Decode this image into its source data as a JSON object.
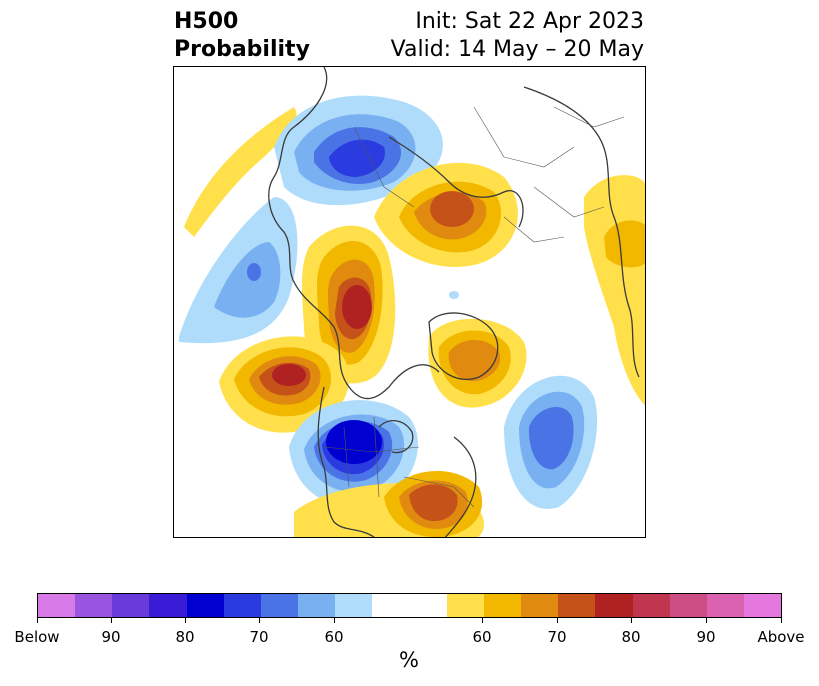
{
  "title": {
    "left_line1": "H500",
    "left_line2": "Probability",
    "right_line1": "Init: Sat 22 Apr 2023",
    "right_line2": "Valid: 14 May – 20 May"
  },
  "colorbar": {
    "unit_label": "%",
    "tick_labels": [
      "Below",
      "90",
      "80",
      "70",
      "60",
      "60",
      "70",
      "80",
      "90",
      "Above"
    ],
    "colors": [
      "#d77ae8",
      "#9a55e0",
      "#6a3bdb",
      "#3a1bd6",
      "#0000d0",
      "#2a3be0",
      "#4a74e6",
      "#78b0f2",
      "#aedcfa",
      "#ffffff",
      "#ffffff",
      "#ffe04a",
      "#f2b800",
      "#e08a10",
      "#c55218",
      "#b02222",
      "#c0364e",
      "#cc4e84",
      "#da62b0",
      "#e478de"
    ]
  },
  "map": {
    "projection": "north-polar-stereographic",
    "shading_colors": {
      "blue_light": "#aedcfa",
      "blue_2": "#78b0f2",
      "blue_3": "#4a74e6",
      "blue_4": "#2a3be0",
      "blue_5": "#0000d0",
      "orange_1": "#ffe04a",
      "orange_2": "#f2b800",
      "orange_3": "#e08a10",
      "orange_4": "#c55218",
      "red_5": "#b02222"
    }
  }
}
